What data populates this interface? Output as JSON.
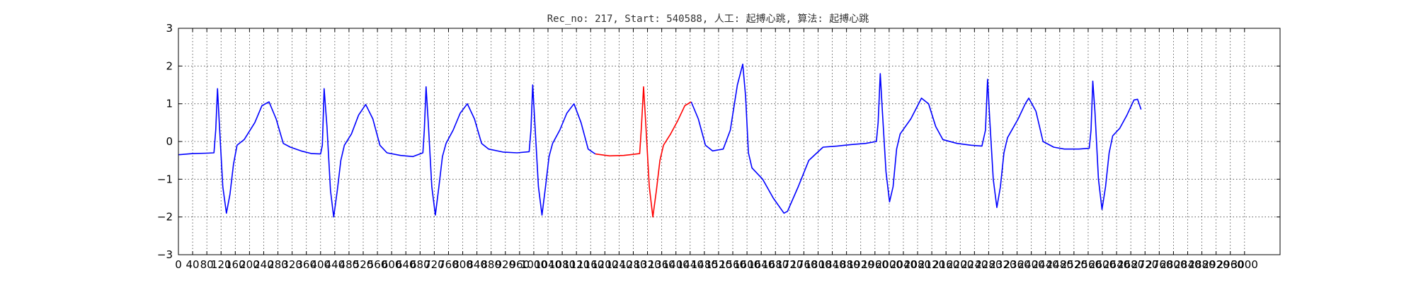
{
  "chart_data": {
    "type": "line",
    "title": "Rec_no: 217, Start: 540588, 人工: 起搏心跳, 算法: 起搏心跳",
    "xlabel": "",
    "ylabel": "",
    "xlim": [
      0,
      3100
    ],
    "ylim": [
      -3,
      3
    ],
    "y_ticks": [
      -3,
      -2,
      -1,
      0,
      1,
      2,
      3
    ],
    "y_tick_labels": [
      "−3",
      "−2",
      "−1",
      "0",
      "1",
      "2",
      "3"
    ],
    "x_ticks": [
      0,
      40,
      80,
      120,
      160,
      200,
      240,
      280,
      320,
      360,
      400,
      440,
      480,
      520,
      560,
      600,
      640,
      680,
      720,
      760,
      800,
      840,
      880,
      920,
      960,
      1000,
      1040,
      1080,
      1120,
      1160,
      1200,
      1240,
      1280,
      1320,
      1360,
      1400,
      1440,
      1480,
      1520,
      1560,
      1600,
      1640,
      1680,
      1720,
      1760,
      1800,
      1840,
      1880,
      1920,
      1960,
      2000,
      2040,
      2080,
      2120,
      2160,
      2200,
      2240,
      2280,
      2320,
      2360,
      2400,
      2440,
      2480,
      2520,
      2560,
      2600,
      2640,
      2680,
      2720,
      2760,
      2800,
      2840,
      2880,
      2920,
      2960,
      3000
    ],
    "x_tick_labels": [
      "0",
      "40",
      "80",
      "120",
      "160",
      "200",
      "240",
      "280",
      "320",
      "360",
      "400",
      "440",
      "480",
      "520",
      "560",
      "600",
      "640",
      "680",
      "720",
      "760",
      "800",
      "840",
      "880",
      "920",
      "960",
      "1000",
      "1040",
      "1080",
      "1120",
      "1160",
      "1200",
      "1240",
      "1280",
      "1320",
      "1360",
      "1400",
      "1440",
      "1480",
      "1520",
      "1560",
      "1600",
      "1640",
      "1680",
      "1720",
      "1760",
      "1800",
      "1840",
      "1880",
      "1920",
      "1960",
      "2000",
      "2040",
      "2080",
      "2120",
      "2160",
      "2200",
      "2240",
      "2280",
      "2320",
      "2360",
      "2400",
      "2440",
      "2480",
      "2520",
      "2560",
      "2600",
      "2640",
      "2680",
      "2720",
      "2760",
      "2800",
      "2840",
      "2880",
      "2920",
      "2960",
      "3000"
    ],
    "grid": true,
    "series": [
      {
        "color": "#0000ff",
        "points": [
          [
            0,
            -0.35
          ],
          [
            40,
            -0.32
          ],
          [
            80,
            -0.31
          ],
          [
            100,
            -0.3
          ],
          [
            105,
            0.3
          ],
          [
            110,
            1.4
          ],
          [
            115,
            0.5
          ],
          [
            125,
            -1.2
          ],
          [
            135,
            -1.9
          ],
          [
            145,
            -1.4
          ],
          [
            155,
            -0.6
          ],
          [
            165,
            -0.1
          ],
          [
            185,
            0.05
          ],
          [
            215,
            0.5
          ],
          [
            235,
            0.95
          ],
          [
            255,
            1.05
          ],
          [
            275,
            0.6
          ],
          [
            295,
            -0.05
          ],
          [
            315,
            -0.15
          ],
          [
            345,
            -0.25
          ],
          [
            375,
            -0.32
          ],
          [
            400,
            -0.33
          ],
          [
            405,
            -0.1
          ],
          [
            410,
            1.4
          ],
          [
            418,
            0.4
          ],
          [
            428,
            -1.3
          ],
          [
            437,
            -2.0
          ],
          [
            447,
            -1.3
          ],
          [
            457,
            -0.5
          ],
          [
            467,
            -0.1
          ],
          [
            487,
            0.2
          ],
          [
            507,
            0.7
          ],
          [
            527,
            0.98
          ],
          [
            547,
            0.6
          ],
          [
            567,
            -0.1
          ],
          [
            587,
            -0.3
          ],
          [
            625,
            -0.37
          ],
          [
            660,
            -0.4
          ],
          [
            688,
            -0.3
          ],
          [
            692,
            0.3
          ],
          [
            697,
            1.45
          ],
          [
            703,
            0.5
          ],
          [
            713,
            -1.2
          ],
          [
            723,
            -1.95
          ],
          [
            733,
            -1.2
          ],
          [
            743,
            -0.4
          ],
          [
            753,
            -0.05
          ],
          [
            773,
            0.3
          ],
          [
            793,
            0.75
          ],
          [
            813,
            1.0
          ],
          [
            833,
            0.6
          ],
          [
            853,
            -0.05
          ],
          [
            873,
            -0.2
          ],
          [
            913,
            -0.28
          ],
          [
            953,
            -0.3
          ],
          [
            987,
            -0.27
          ],
          [
            992,
            0.3
          ],
          [
            997,
            1.5
          ],
          [
            1003,
            0.5
          ],
          [
            1013,
            -1.2
          ],
          [
            1023,
            -1.95
          ],
          [
            1033,
            -1.2
          ],
          [
            1043,
            -0.4
          ],
          [
            1053,
            -0.05
          ],
          [
            1073,
            0.3
          ],
          [
            1093,
            0.75
          ],
          [
            1113,
            1.0
          ],
          [
            1133,
            0.5
          ],
          [
            1153,
            -0.2
          ],
          [
            1173,
            -0.33
          ]
        ]
      },
      {
        "color": "#ff0000",
        "points": [
          [
            1173,
            -0.33
          ],
          [
            1213,
            -0.38
          ],
          [
            1253,
            -0.37
          ],
          [
            1298,
            -0.32
          ],
          [
            1303,
            0.4
          ],
          [
            1309,
            1.45
          ],
          [
            1315,
            0.5
          ],
          [
            1325,
            -1.2
          ],
          [
            1335,
            -2.0
          ],
          [
            1345,
            -1.3
          ],
          [
            1355,
            -0.5
          ],
          [
            1365,
            -0.1
          ],
          [
            1385,
            0.2
          ],
          [
            1405,
            0.55
          ],
          [
            1425,
            0.95
          ],
          [
            1443,
            1.05
          ]
        ]
      },
      {
        "color": "#0000ff",
        "points": [
          [
            1443,
            1.05
          ],
          [
            1463,
            0.6
          ],
          [
            1483,
            -0.1
          ],
          [
            1503,
            -0.25
          ],
          [
            1533,
            -0.2
          ],
          [
            1553,
            0.3
          ],
          [
            1573,
            1.5
          ],
          [
            1588,
            2.05
          ],
          [
            1596,
            1.2
          ],
          [
            1604,
            -0.3
          ],
          [
            1614,
            -0.7
          ],
          [
            1644,
            -1.0
          ],
          [
            1674,
            -1.5
          ],
          [
            1704,
            -1.9
          ],
          [
            1714,
            -1.85
          ],
          [
            1744,
            -1.2
          ],
          [
            1774,
            -0.5
          ],
          [
            1814,
            -0.15
          ],
          [
            1854,
            -0.12
          ],
          [
            1894,
            -0.08
          ],
          [
            1934,
            -0.05
          ],
          [
            1964,
            0.0
          ],
          [
            1969,
            0.5
          ],
          [
            1975,
            1.8
          ],
          [
            1981,
            0.8
          ],
          [
            1991,
            -0.8
          ],
          [
            2001,
            -1.6
          ],
          [
            2011,
            -1.2
          ],
          [
            2021,
            -0.2
          ],
          [
            2031,
            0.2
          ],
          [
            2061,
            0.6
          ],
          [
            2091,
            1.15
          ],
          [
            2111,
            1.0
          ],
          [
            2131,
            0.4
          ],
          [
            2151,
            0.05
          ],
          [
            2191,
            -0.05
          ],
          [
            2231,
            -0.1
          ],
          [
            2261,
            -0.12
          ],
          [
            2271,
            0.3
          ],
          [
            2277,
            1.65
          ],
          [
            2283,
            0.6
          ],
          [
            2293,
            -1.0
          ],
          [
            2303,
            -1.75
          ],
          [
            2313,
            -1.2
          ],
          [
            2323,
            -0.3
          ],
          [
            2333,
            0.1
          ],
          [
            2363,
            0.6
          ],
          [
            2383,
            1.0
          ],
          [
            2393,
            1.15
          ],
          [
            2413,
            0.8
          ],
          [
            2433,
            0.0
          ],
          [
            2463,
            -0.15
          ],
          [
            2493,
            -0.2
          ],
          [
            2533,
            -0.2
          ],
          [
            2563,
            -0.18
          ],
          [
            2568,
            0.3
          ],
          [
            2573,
            1.6
          ],
          [
            2579,
            0.8
          ],
          [
            2589,
            -1.0
          ],
          [
            2599,
            -1.8
          ],
          [
            2609,
            -1.2
          ],
          [
            2619,
            -0.3
          ],
          [
            2629,
            0.15
          ],
          [
            2649,
            0.35
          ],
          [
            2669,
            0.7
          ],
          [
            2689,
            1.1
          ],
          [
            2699,
            1.12
          ],
          [
            2709,
            0.85
          ]
        ]
      }
    ]
  }
}
